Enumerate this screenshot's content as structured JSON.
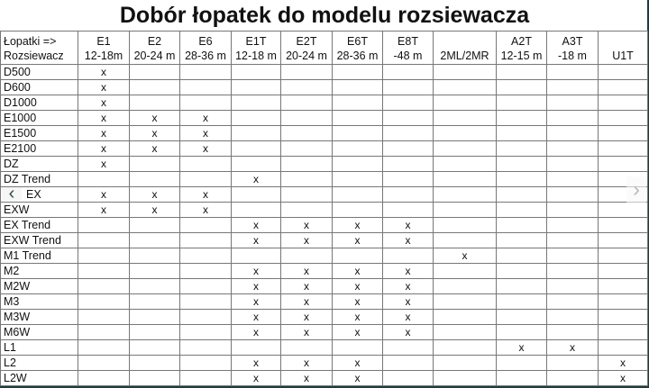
{
  "title": "Dobór łopatek do modelu rozsiewacza",
  "header": {
    "corner_line1": "Łopatki =>",
    "corner_line2": "Rozsiewacz",
    "columns": [
      {
        "name": "E1",
        "range": "12-18m"
      },
      {
        "name": "E2",
        "range": "20-24 m"
      },
      {
        "name": "E6",
        "range": "28-36 m"
      },
      {
        "name": "E1T",
        "range": "12-18 m"
      },
      {
        "name": "E2T",
        "range": "20-24 m"
      },
      {
        "name": "E6T",
        "range": "28-36 m"
      },
      {
        "name": "E8T",
        "range": "-48 m"
      },
      {
        "name": "",
        "range": "2ML/2MR"
      },
      {
        "name": "A2T",
        "range": "12-15 m"
      },
      {
        "name": "A3T",
        "range": "-18 m"
      },
      {
        "name": "",
        "range": "U1T"
      }
    ]
  },
  "mark": "x",
  "rows": [
    {
      "label": "D500",
      "cols": [
        0
      ]
    },
    {
      "label": "D600",
      "cols": [
        0
      ]
    },
    {
      "label": "D1000",
      "cols": [
        0
      ]
    },
    {
      "label": "E1000",
      "cols": [
        0,
        1,
        2
      ]
    },
    {
      "label": "E1500",
      "cols": [
        0,
        1,
        2
      ]
    },
    {
      "label": "E2100",
      "cols": [
        0,
        1,
        2
      ]
    },
    {
      "label": "DZ",
      "cols": [
        0
      ]
    },
    {
      "label": "DZ Trend",
      "cols": [
        3
      ]
    },
    {
      "label": "EX",
      "cols": [
        0,
        1,
        2
      ]
    },
    {
      "label": "EXW",
      "cols": [
        0,
        1,
        2
      ]
    },
    {
      "label": "EX Trend",
      "cols": [
        3,
        4,
        5,
        6
      ]
    },
    {
      "label": "EXW Trend",
      "cols": [
        3,
        4,
        5,
        6
      ]
    },
    {
      "label": "M1 Trend",
      "cols": [
        7
      ]
    },
    {
      "label": "M2",
      "cols": [
        3,
        4,
        5,
        6
      ]
    },
    {
      "label": "M2W",
      "cols": [
        3,
        4,
        5,
        6
      ]
    },
    {
      "label": "M3",
      "cols": [
        3,
        4,
        5,
        6
      ]
    },
    {
      "label": "M3W",
      "cols": [
        3,
        4,
        5,
        6
      ]
    },
    {
      "label": "M6W",
      "cols": [
        3,
        4,
        5,
        6
      ]
    },
    {
      "label": "L1",
      "cols": [
        8,
        9
      ]
    },
    {
      "label": "L2",
      "cols": [
        3,
        4,
        5,
        10
      ]
    },
    {
      "label": "L2W",
      "cols": [
        3,
        4,
        5,
        10
      ]
    }
  ],
  "nav": {
    "prev_icon": "chevron-left-icon",
    "next_icon": "chevron-right-icon",
    "prev_glyph": "‹",
    "next_glyph": "›"
  }
}
